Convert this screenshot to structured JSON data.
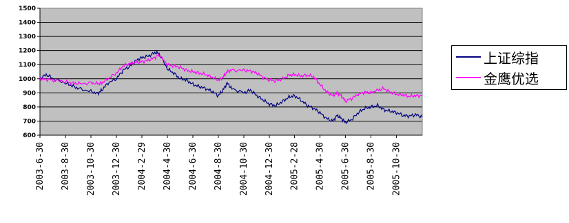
{
  "chart_data": {
    "type": "line",
    "ylim": [
      600,
      1500
    ],
    "yticks": [
      600,
      700,
      800,
      900,
      1000,
      1100,
      1200,
      1300,
      1400,
      1500
    ],
    "ytick_labels": [
      "600",
      "700",
      "800",
      "900",
      "1000",
      "1100",
      "1200",
      "1300",
      "1400",
      "1500"
    ],
    "x_start": "2003-06-30",
    "x_end": "2005-12-31",
    "xtick_labels": [
      "2003-6-30",
      "2003-8-30",
      "2003-10-30",
      "2003-12-30",
      "2004-2-29",
      "2004-4-30",
      "2004-6-30",
      "2004-8-30",
      "2004-10-30",
      "2004-12-30",
      "2005-2-28",
      "2005-4-30",
      "2005-6-30",
      "2005-8-30",
      "2005-10-30"
    ],
    "xtick_dates": [
      "2003-06-30",
      "2003-08-30",
      "2003-10-30",
      "2003-12-30",
      "2004-02-29",
      "2004-04-30",
      "2004-06-30",
      "2004-08-30",
      "2004-10-30",
      "2004-12-30",
      "2005-02-28",
      "2005-04-30",
      "2005-06-30",
      "2005-08-30",
      "2005-10-30"
    ],
    "grid": true,
    "plot_background": "#c0c0c0",
    "legend_position": "right",
    "series": [
      {
        "name": "上证综指",
        "color": "#000080",
        "points": [
          [
            "2003-06-30",
            1000
          ],
          [
            "2003-07-15",
            1030
          ],
          [
            "2003-08-01",
            1000
          ],
          [
            "2003-08-30",
            970
          ],
          [
            "2003-09-15",
            950
          ],
          [
            "2003-10-01",
            930
          ],
          [
            "2003-10-30",
            910
          ],
          [
            "2003-11-15",
            895
          ],
          [
            "2003-11-25",
            920
          ],
          [
            "2003-12-10",
            970
          ],
          [
            "2003-12-30",
            1000
          ],
          [
            "2004-01-15",
            1060
          ],
          [
            "2004-02-01",
            1090
          ],
          [
            "2004-02-15",
            1130
          ],
          [
            "2004-02-29",
            1150
          ],
          [
            "2004-03-15",
            1160
          ],
          [
            "2004-03-31",
            1185
          ],
          [
            "2004-04-10",
            1180
          ],
          [
            "2004-04-30",
            1070
          ],
          [
            "2004-05-15",
            1040
          ],
          [
            "2004-05-31",
            1000
          ],
          [
            "2004-06-15",
            990
          ],
          [
            "2004-06-30",
            960
          ],
          [
            "2004-07-15",
            945
          ],
          [
            "2004-07-31",
            930
          ],
          [
            "2004-08-15",
            910
          ],
          [
            "2004-08-30",
            880
          ],
          [
            "2004-09-10",
            920
          ],
          [
            "2004-09-20",
            970
          ],
          [
            "2004-10-01",
            930
          ],
          [
            "2004-10-30",
            900
          ],
          [
            "2004-11-15",
            920
          ],
          [
            "2004-11-30",
            880
          ],
          [
            "2004-12-15",
            850
          ],
          [
            "2004-12-30",
            820
          ],
          [
            "2005-01-15",
            810
          ],
          [
            "2005-01-31",
            840
          ],
          [
            "2005-02-15",
            870
          ],
          [
            "2005-02-28",
            880
          ],
          [
            "2005-03-15",
            850
          ],
          [
            "2005-03-31",
            810
          ],
          [
            "2005-04-15",
            790
          ],
          [
            "2005-04-30",
            760
          ],
          [
            "2005-05-15",
            720
          ],
          [
            "2005-05-31",
            700
          ],
          [
            "2005-06-10",
            740
          ],
          [
            "2005-06-20",
            720
          ],
          [
            "2005-06-30",
            690
          ],
          [
            "2005-07-15",
            710
          ],
          [
            "2005-07-31",
            760
          ],
          [
            "2005-08-15",
            790
          ],
          [
            "2005-08-30",
            800
          ],
          [
            "2005-09-15",
            810
          ],
          [
            "2005-09-30",
            780
          ],
          [
            "2005-10-15",
            770
          ],
          [
            "2005-10-30",
            760
          ],
          [
            "2005-11-15",
            740
          ],
          [
            "2005-11-30",
            735
          ],
          [
            "2005-12-15",
            745
          ],
          [
            "2005-12-31",
            730
          ]
        ]
      },
      {
        "name": "金鹰优选",
        "color": "#ff00ff",
        "points": [
          [
            "2003-06-30",
            1000
          ],
          [
            "2003-07-15",
            995
          ],
          [
            "2003-08-01",
            990
          ],
          [
            "2003-08-30",
            980
          ],
          [
            "2003-09-15",
            970
          ],
          [
            "2003-10-01",
            965
          ],
          [
            "2003-10-30",
            970
          ],
          [
            "2003-11-15",
            965
          ],
          [
            "2003-11-25",
            970
          ],
          [
            "2003-12-10",
            1000
          ],
          [
            "2003-12-30",
            1040
          ],
          [
            "2004-01-15",
            1090
          ],
          [
            "2004-02-01",
            1110
          ],
          [
            "2004-02-15",
            1115
          ],
          [
            "2004-02-29",
            1120
          ],
          [
            "2004-03-15",
            1130
          ],
          [
            "2004-03-31",
            1150
          ],
          [
            "2004-04-10",
            1170
          ],
          [
            "2004-04-30",
            1100
          ],
          [
            "2004-05-15",
            1090
          ],
          [
            "2004-05-31",
            1080
          ],
          [
            "2004-06-15",
            1060
          ],
          [
            "2004-06-30",
            1050
          ],
          [
            "2004-07-15",
            1040
          ],
          [
            "2004-07-31",
            1030
          ],
          [
            "2004-08-15",
            1010
          ],
          [
            "2004-08-30",
            990
          ],
          [
            "2004-09-10",
            1010
          ],
          [
            "2004-09-20",
            1050
          ],
          [
            "2004-10-01",
            1060
          ],
          [
            "2004-10-30",
            1060
          ],
          [
            "2004-11-15",
            1055
          ],
          [
            "2004-11-30",
            1040
          ],
          [
            "2004-12-15",
            1010
          ],
          [
            "2004-12-30",
            990
          ],
          [
            "2005-01-15",
            985
          ],
          [
            "2005-01-31",
            1000
          ],
          [
            "2005-02-15",
            1025
          ],
          [
            "2005-02-28",
            1030
          ],
          [
            "2005-03-15",
            1020
          ],
          [
            "2005-03-31",
            1025
          ],
          [
            "2005-04-15",
            1015
          ],
          [
            "2005-04-30",
            960
          ],
          [
            "2005-05-15",
            910
          ],
          [
            "2005-05-31",
            880
          ],
          [
            "2005-06-10",
            900
          ],
          [
            "2005-06-20",
            880
          ],
          [
            "2005-06-30",
            840
          ],
          [
            "2005-07-15",
            860
          ],
          [
            "2005-07-31",
            890
          ],
          [
            "2005-08-15",
            905
          ],
          [
            "2005-08-30",
            900
          ],
          [
            "2005-09-15",
            920
          ],
          [
            "2005-09-30",
            930
          ],
          [
            "2005-10-15",
            905
          ],
          [
            "2005-10-30",
            890
          ],
          [
            "2005-11-15",
            885
          ],
          [
            "2005-11-30",
            875
          ],
          [
            "2005-12-15",
            880
          ],
          [
            "2005-12-31",
            880
          ]
        ]
      }
    ]
  }
}
